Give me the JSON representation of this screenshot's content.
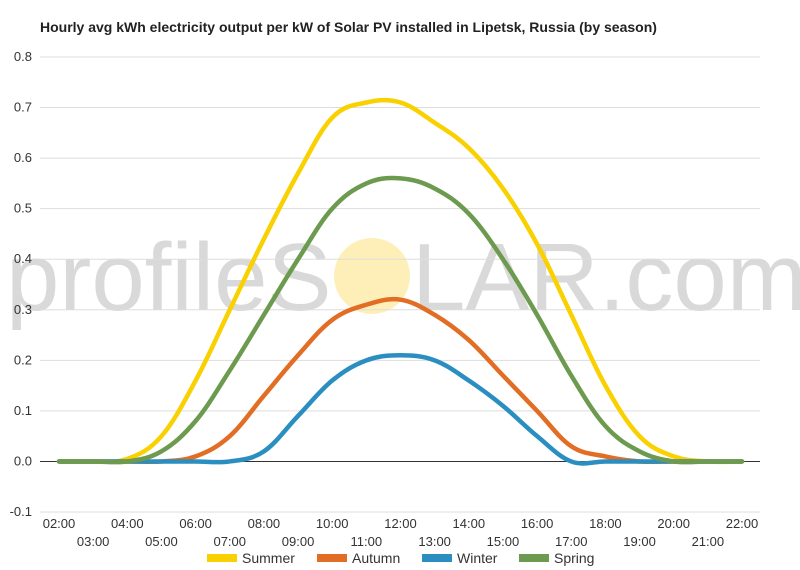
{
  "watermark": {
    "part1": "profileS",
    "part2": "LAR.com",
    "sun_color": "#fde9a0"
  },
  "chart_data": {
    "type": "line",
    "title": "Hourly avg kWh electricity output per kW of Solar PV installed in Lipetsk, Russia (by season)",
    "xlabel": "",
    "ylabel": "",
    "ylim": [
      -0.1,
      0.8
    ],
    "yticks": [
      -0.1,
      0.0,
      0.1,
      0.2,
      0.3,
      0.4,
      0.5,
      0.6,
      0.7,
      0.8
    ],
    "ytick_labels": [
      "-0.1",
      "0.0",
      "0.1",
      "0.2",
      "0.3",
      "0.4",
      "0.5",
      "0.6",
      "0.7",
      "0.8"
    ],
    "grid": true,
    "legend_position": "bottom",
    "categories": [
      "02:00",
      "03:00",
      "04:00",
      "05:00",
      "06:00",
      "07:00",
      "08:00",
      "09:00",
      "10:00",
      "11:00",
      "12:00",
      "13:00",
      "14:00",
      "15:00",
      "16:00",
      "17:00",
      "18:00",
      "19:00",
      "20:00",
      "21:00",
      "22:00"
    ],
    "series": [
      {
        "name": "Summer",
        "color": "#f9d000",
        "values": [
          0,
          0,
          0.005,
          0.05,
          0.16,
          0.3,
          0.44,
          0.57,
          0.68,
          0.71,
          0.71,
          0.67,
          0.62,
          0.54,
          0.43,
          0.29,
          0.15,
          0.05,
          0.01,
          0,
          0
        ]
      },
      {
        "name": "Autumn",
        "color": "#e26d24",
        "values": [
          0,
          0,
          0,
          0,
          0.01,
          0.05,
          0.13,
          0.21,
          0.28,
          0.31,
          0.32,
          0.29,
          0.24,
          0.17,
          0.1,
          0.03,
          0.01,
          0,
          0,
          0,
          0
        ]
      },
      {
        "name": "Winter",
        "color": "#2a8fc0",
        "values": [
          0,
          0,
          0,
          0,
          0,
          0,
          0.02,
          0.09,
          0.16,
          0.2,
          0.21,
          0.2,
          0.16,
          0.11,
          0.05,
          0,
          0,
          0,
          0,
          0,
          0
        ]
      },
      {
        "name": "Spring",
        "color": "#6c9a4e",
        "values": [
          0,
          0,
          0,
          0.02,
          0.08,
          0.18,
          0.29,
          0.4,
          0.5,
          0.55,
          0.56,
          0.54,
          0.49,
          0.4,
          0.29,
          0.17,
          0.07,
          0.02,
          0,
          0,
          0
        ]
      }
    ]
  }
}
